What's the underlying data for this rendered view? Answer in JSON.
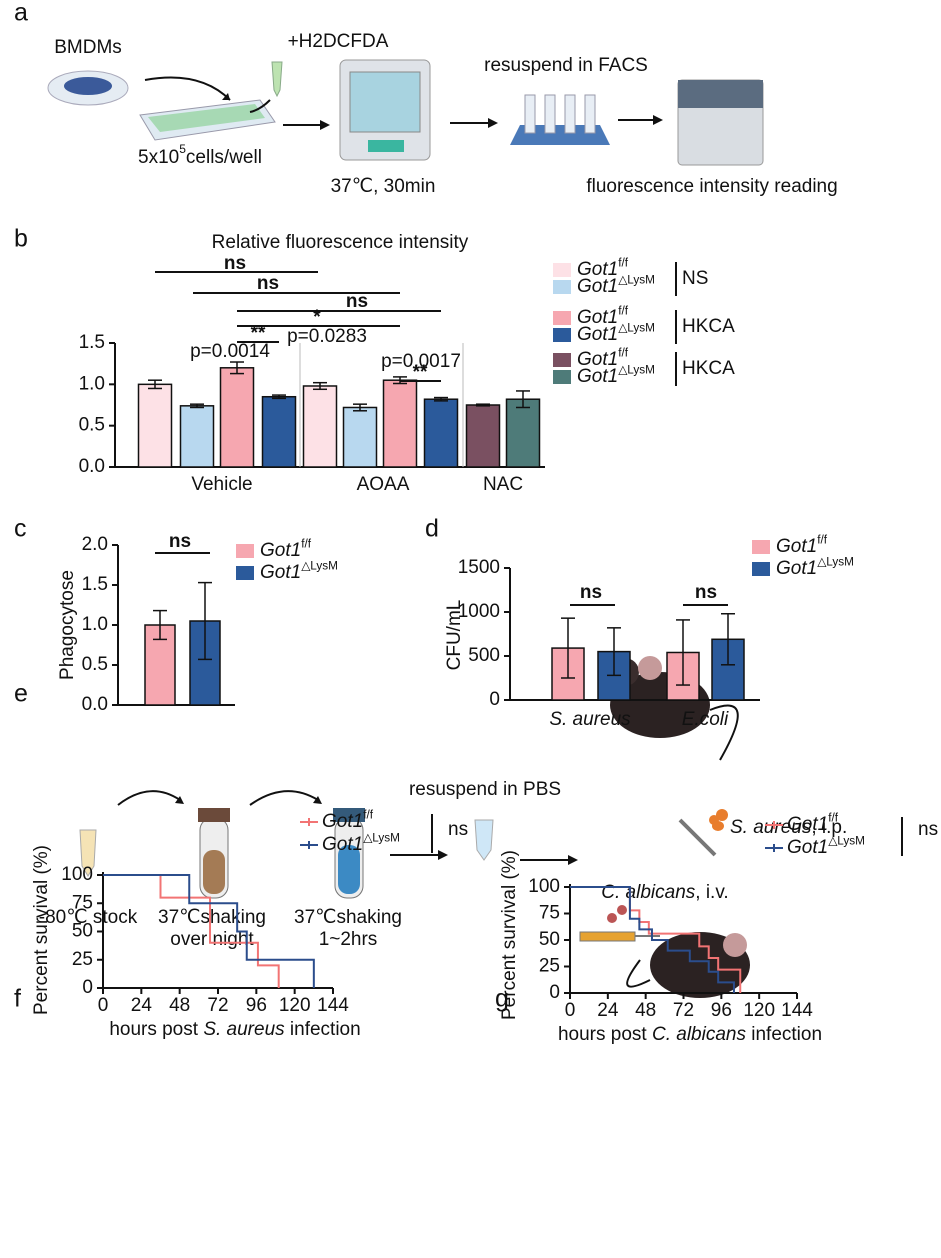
{
  "panel_labels": [
    "a",
    "b",
    "c",
    "d",
    "e",
    "f",
    "g"
  ],
  "panel_a": {
    "cells": "BMDMs",
    "reagent": "+H2DCFDA",
    "density": [
      "5x10",
      "5",
      "cells/well"
    ],
    "incubation": "37℃, 30min",
    "resuspend": "resuspend in FACS",
    "reading": "fluorescence intensity reading"
  },
  "panel_e": {
    "stock": "-80℃ stock",
    "overnight": [
      "37℃shaking",
      "over night"
    ],
    "short": [
      "37℃shaking",
      "1~2hrs"
    ],
    "resuspend": "resuspend in PBS",
    "sa": [
      "S. aureus",
      ", i.p."
    ],
    "ca": [
      "C. albicans",
      ", i.v."
    ]
  },
  "chart_data": [
    {
      "type": "bar",
      "title": "Relative fluorescence intensity",
      "categories": [
        "Vehicle",
        "AOAA",
        "NAC"
      ],
      "series": [
        {
          "name": "Got1",
          "name_sup": "f/f",
          "color": "#fde1e6",
          "values": [
            1.0,
            0.98,
            null
          ],
          "errors": [
            0.05,
            0.04,
            null
          ]
        },
        {
          "name": "Got1",
          "name_sup": "△LysM",
          "color": "#b8d8ef",
          "values": [
            0.74,
            0.72,
            null
          ],
          "errors": [
            0.02,
            0.04,
            null
          ]
        },
        {
          "name": "Got1",
          "name_sup": "f/f",
          "color": "#f6a7b0",
          "values": [
            1.2,
            1.05,
            null
          ],
          "errors": [
            0.07,
            0.04,
            null
          ]
        },
        {
          "name": "Got1",
          "name_sup": "△LysM",
          "color": "#2b5a9b",
          "values": [
            0.85,
            0.82,
            null
          ],
          "errors": [
            0.02,
            0.02,
            null
          ]
        },
        {
          "name": "Got1",
          "name_sup": "f/f",
          "color": "#7a5061",
          "values": [
            null,
            null,
            0.75
          ],
          "errors": [
            null,
            null,
            0.01
          ]
        },
        {
          "name": "Got1",
          "name_sup": "△LysM",
          "color": "#4e7b79",
          "values": [
            null,
            null,
            0.82
          ],
          "errors": [
            null,
            null,
            0.1
          ]
        }
      ],
      "legend_groups": [
        "NS",
        "HKCA",
        "HKCA"
      ],
      "annotations": [
        "ns",
        "ns",
        "ns",
        "*",
        "p=0.0283",
        "**",
        "p=0.0014",
        "**",
        "p=0.0017"
      ],
      "ylim": [
        0,
        1.5
      ],
      "yticks": [
        {
          "value": 0,
          "label": "0.0"
        },
        0.5,
        {
          "value": 1,
          "label": "1.0"
        },
        1.5
      ]
    },
    {
      "type": "bar",
      "ylabel": "Phagocytose",
      "categories": [
        null
      ],
      "series": [
        {
          "name": "Got1",
          "name_sup": "f/f",
          "color": "#f6a7b0",
          "values": [
            1.0
          ],
          "errors": [
            0.18
          ]
        },
        {
          "name": "Got1",
          "name_sup": "△LysM",
          "color": "#2b5a9b",
          "values": [
            1.05
          ],
          "errors": [
            0.48
          ]
        }
      ],
      "annotations": [
        "ns"
      ],
      "ylim": [
        0,
        2
      ],
      "yticks": [
        {
          "value": 0,
          "label": "0.0"
        },
        0.5,
        {
          "value": 1,
          "label": "1.0"
        },
        1.5,
        {
          "value": 2,
          "label": "2.0"
        }
      ]
    },
    {
      "type": "bar",
      "ylabel": "CFU/mL",
      "categories": [
        "S. aureus",
        "E.coli"
      ],
      "series": [
        {
          "name": "Got1",
          "name_sup": "f/f",
          "color": "#f6a7b0",
          "values": [
            590,
            540
          ],
          "errors": [
            340,
            370
          ]
        },
        {
          "name": "Got1",
          "name_sup": "△LysM",
          "color": "#2b5a9b",
          "values": [
            550,
            690
          ],
          "errors": [
            270,
            290
          ]
        }
      ],
      "annotations": [
        "ns",
        "ns"
      ],
      "ylim": [
        0,
        1500
      ],
      "yticks": [
        0,
        500,
        1000,
        1500
      ]
    },
    {
      "type": "line",
      "ylabel": "Percent survival (%)",
      "xlabel": [
        "hours post ",
        "S. aureus",
        " infection"
      ],
      "series": [
        {
          "name": "Got1",
          "name_sup": "f/f",
          "color": "#f27474",
          "x": [
            0,
            36,
            36,
            67,
            67,
            97,
            97,
            110,
            110
          ],
          "values": [
            100,
            100,
            80,
            80,
            40,
            40,
            20,
            20,
            0
          ]
        },
        {
          "name": "Got1",
          "name_sup": "△LysM",
          "color": "#2b4d8c",
          "x": [
            0,
            54,
            54,
            84,
            84,
            90,
            90,
            132,
            132
          ],
          "values": [
            100,
            100,
            75,
            75,
            50,
            50,
            25,
            25,
            0
          ]
        }
      ],
      "legend_note": "ns",
      "xlim": [
        0,
        144
      ],
      "xticks": [
        0,
        24,
        48,
        72,
        96,
        120,
        144
      ],
      "ylim": [
        0,
        100
      ],
      "yticks": [
        0,
        25,
        50,
        75,
        100
      ]
    },
    {
      "type": "line",
      "ylabel": "Percent survival (%)",
      "xlabel": [
        "hours post ",
        "C. albicans",
        " infection"
      ],
      "series": [
        {
          "name": "Got1",
          "name_sup": "f/f",
          "color": "#f27474",
          "x": [
            0,
            38,
            38,
            44,
            44,
            50,
            50,
            82,
            82,
            88,
            88,
            94,
            94,
            108,
            108
          ],
          "values": [
            100,
            100,
            78,
            78,
            67,
            67,
            56,
            56,
            44,
            44,
            33,
            33,
            22,
            22,
            0
          ]
        },
        {
          "name": "Got1",
          "name_sup": "△LysM",
          "color": "#2b4d8c",
          "x": [
            0,
            38,
            38,
            44,
            44,
            52,
            52,
            62,
            62,
            76,
            76,
            88,
            88,
            94,
            94,
            104,
            104
          ],
          "values": [
            100,
            100,
            70,
            70,
            60,
            60,
            50,
            50,
            40,
            40,
            30,
            30,
            20,
            20,
            10,
            10,
            0
          ]
        }
      ],
      "legend_note": "ns",
      "xlim": [
        0,
        144
      ],
      "xticks": [
        0,
        24,
        48,
        72,
        96,
        120,
        144
      ],
      "ylim": [
        0,
        100
      ],
      "yticks": [
        0,
        25,
        50,
        75,
        100
      ]
    }
  ]
}
